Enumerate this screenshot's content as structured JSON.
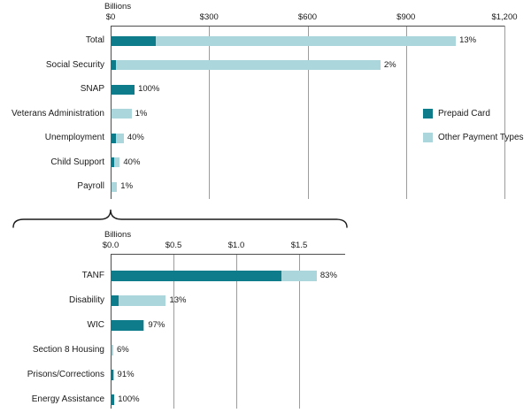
{
  "legend": {
    "items": [
      {
        "label": "Prepaid Card",
        "series": "prepaid"
      },
      {
        "label": "Other Payment Types",
        "series": "other"
      }
    ]
  },
  "colors": {
    "prepaid": "#0E7C8A",
    "other": "#ABD6DB",
    "grid": "#9C9C9C",
    "axis": "#4D4D4D",
    "text": "#1A1A1A"
  },
  "chart_data": [
    {
      "type": "bar",
      "orientation": "horizontal",
      "stacked": true,
      "axis_title": "Billions",
      "ticks": [
        {
          "label": "$0",
          "value": 0
        },
        {
          "label": "$300",
          "value": 300
        },
        {
          "label": "$600",
          "value": 600
        },
        {
          "label": "$900",
          "value": 900
        },
        {
          "label": "$1,200",
          "value": 1200
        }
      ],
      "xlim": [
        0,
        1200
      ],
      "grid": true,
      "legend_position": "right",
      "categories": [
        "Total",
        "Social Security",
        "SNAP",
        "Veterans Administration",
        "Unemployment",
        "Child Support",
        "Payroll"
      ],
      "series": [
        {
          "name": "Prepaid Card",
          "values": [
            137,
            16,
            73,
            0.6,
            16,
            11,
            0.2
          ]
        },
        {
          "name": "Other Payment Types",
          "values": [
            915,
            806,
            0,
            61,
            24,
            17,
            17
          ]
        }
      ],
      "bar_labels": [
        "13%",
        "2%",
        "100%",
        "1%",
        "40%",
        "40%",
        "1%"
      ]
    },
    {
      "type": "bar",
      "orientation": "horizontal",
      "stacked": true,
      "axis_title": "Billions",
      "ticks": [
        {
          "label": "$0.0",
          "value": 0
        },
        {
          "label": "$0.5",
          "value": 0.5
        },
        {
          "label": "$1.0",
          "value": 1.0
        },
        {
          "label": "$1.5",
          "value": 1.5
        }
      ],
      "xlim": [
        0,
        1.87
      ],
      "grid": true,
      "categories": [
        "TANF",
        "Disability",
        "WIC",
        "Section 8 Housing",
        "Prisons/Corrections",
        "Energy Assistance"
      ],
      "series": [
        {
          "name": "Prepaid Card",
          "values": [
            1.36,
            0.06,
            0.26,
            0.001,
            0.018,
            0.03
          ]
        },
        {
          "name": "Other Payment Types",
          "values": [
            0.28,
            0.38,
            0.01,
            0.014,
            0.002,
            0
          ]
        }
      ],
      "bar_labels": [
        "83%",
        "13%",
        "97%",
        "6%",
        "91%",
        "100%"
      ]
    }
  ]
}
